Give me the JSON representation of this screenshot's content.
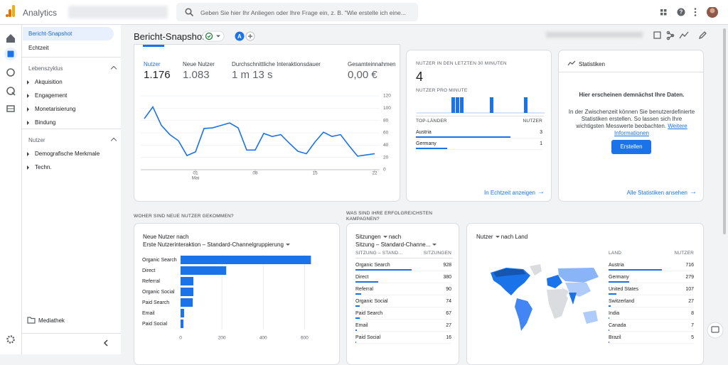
{
  "header": {
    "app_name": "Analytics",
    "search_placeholder": "Geben Sie hier Ihr Anliegen oder Ihre Frage ein, z. B. \"Wie erstelle ich eine..."
  },
  "sidebar": {
    "items": [
      "Bericht-Snapshot",
      "Echtzeit"
    ],
    "sections": [
      {
        "title": "Lebenszyklus",
        "items": [
          "Akquisition",
          "Engagement",
          "Monetarisierung",
          "Bindung"
        ]
      },
      {
        "title": "Nutzer",
        "items": [
          "Demografische Merkmale",
          "Techn."
        ]
      }
    ],
    "library": "Mediathek"
  },
  "page": {
    "title": "Bericht-Snapshot",
    "badge": "A"
  },
  "overview": {
    "metrics": [
      {
        "label": "Nutzer",
        "value": "1.176"
      },
      {
        "label": "Neue Nutzer",
        "value": "1.083"
      },
      {
        "label": "Durchschnittliche Interaktionsdauer",
        "value": "1 m 13 s"
      },
      {
        "label": "Gesamteinnahmen",
        "value": "0,00 €"
      }
    ]
  },
  "chart_data": [
    {
      "type": "line",
      "categories": [
        null,
        null,
        null,
        null,
        null,
        null,
        "01",
        null,
        null,
        null,
        null,
        null,
        null,
        "08",
        null,
        null,
        null,
        null,
        null,
        null,
        "15",
        null,
        null,
        null,
        null,
        null,
        null,
        "22"
      ],
      "month_label": "Mai",
      "values": [
        83,
        102,
        72,
        57,
        47,
        23,
        29,
        67,
        68,
        72,
        76,
        68,
        32,
        32,
        59,
        54,
        57,
        43,
        30,
        26,
        45,
        61,
        54,
        57,
        39,
        22,
        24,
        26
      ],
      "color": "#1a73e8",
      "ylim": [
        0,
        120
      ],
      "yticks": [
        0,
        20,
        40,
        60,
        80,
        100,
        120
      ]
    },
    {
      "type": "bar",
      "title": "NUTZER PRO MINUTE",
      "values": [
        0,
        0,
        0,
        0,
        0,
        0,
        0,
        0,
        1,
        1,
        1,
        0,
        0,
        0,
        0,
        0,
        0,
        1,
        0,
        0,
        0,
        0,
        0,
        0,
        0,
        1,
        0,
        0,
        0,
        0
      ],
      "color": "#1a73e8"
    },
    {
      "type": "bar",
      "orientation": "horizontal",
      "title": "Neue Nutzer nach",
      "subtitle": "Erste Nutzerinteraktion – Standard-Channelgruppierung",
      "categories": [
        "Organic Search",
        "Direct",
        "Referral",
        "Organic Social",
        "Paid Search",
        "Email",
        "Paid Social"
      ],
      "values": [
        631,
        221,
        62,
        62,
        59,
        17,
        14
      ],
      "color": "#1a73e8",
      "xlim": [
        0,
        640
      ],
      "xticks": [
        0,
        200,
        400,
        600
      ],
      "grid": true
    }
  ],
  "realtime": {
    "title": "NUTZER IN DEN LETZTEN 30 MINUTEN",
    "value": "4",
    "countries_header": "TOP-LÄNDER",
    "users_header": "NUTZER",
    "rows": [
      [
        "Austria",
        3
      ],
      [
        "Germany",
        1
      ]
    ],
    "link": "In Echtzeit anzeigen"
  },
  "insights": {
    "title": "Statistiken",
    "heading": "Hier erscheinen demnächst Ihre Daten.",
    "text": "In der Zwischenzeit können Sie benutzerdefinierte Statistiken erstellen. So lassen sich Ihre wichtigsten Messwerte beobachten.",
    "link": "Weitere Informationen",
    "button": "Erstellen",
    "footer_link": "Alle Statistiken ansehen"
  },
  "sections": {
    "acquisition": "WOHER SIND NEUE NUTZER GEKOMMEN?",
    "campaigns": "WAS SIND IHRE ERFOLGREICHSTEN KAMPAGNEN?"
  },
  "campaigns": {
    "metric": "Sitzungen",
    "connector": "nach",
    "dimension": "Sitzung – Standard-Channe...",
    "headers": [
      "SITZUNG – STAND...",
      "SITZUNGEN"
    ],
    "rows": [
      [
        "Organic Search",
        928
      ],
      [
        "Direct",
        380
      ],
      [
        "Referral",
        90
      ],
      [
        "Organic Social",
        74
      ],
      [
        "Paid Search",
        67
      ],
      [
        "Email",
        27
      ],
      [
        "Paid Social",
        16
      ]
    ]
  },
  "countries": {
    "metric": "Nutzer",
    "connector": "nach Land",
    "headers": [
      "LAND",
      "NUTZER"
    ],
    "rows": [
      [
        "Austria",
        716
      ],
      [
        "Germany",
        279
      ],
      [
        "United States",
        107
      ],
      [
        "Switzerland",
        27
      ],
      [
        "India",
        8
      ],
      [
        "Canada",
        7
      ],
      [
        "Brazil",
        5
      ]
    ]
  }
}
